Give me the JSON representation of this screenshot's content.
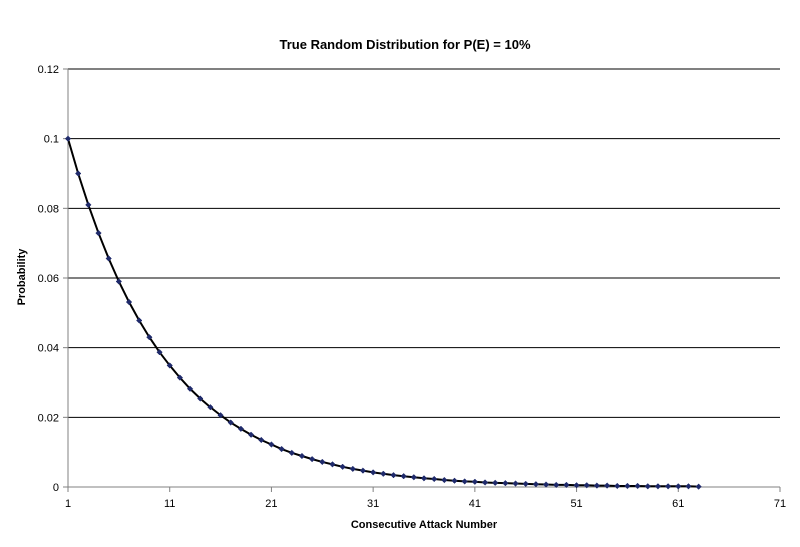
{
  "chart_data": {
    "type": "line",
    "title": "True Random Distribution for P(E) = 10%",
    "xlabel": "Consecutive Attack Number",
    "ylabel": "Probability",
    "xlim": [
      1,
      71
    ],
    "ylim": [
      0,
      0.12
    ],
    "x_ticks": [
      1,
      11,
      21,
      31,
      41,
      51,
      61,
      71
    ],
    "y_ticks": [
      0,
      0.02,
      0.04,
      0.06,
      0.08,
      0.1,
      0.12
    ],
    "x_tick_labels": [
      "1",
      "11",
      "21",
      "31",
      "41",
      "51",
      "61",
      "71"
    ],
    "y_tick_labels": [
      "0",
      "0.02",
      "0.04",
      "0.06",
      "0.08",
      "0.1",
      "0.12"
    ],
    "grid": "horizontal",
    "legend": "none",
    "line_color": "#000000",
    "marker_color": "#1f2a6b",
    "series": [
      {
        "x": [
          1,
          2,
          3,
          4,
          5,
          6,
          7,
          8,
          9,
          10,
          11,
          12,
          13,
          14,
          15,
          16,
          17,
          18,
          19,
          20,
          21,
          22,
          23,
          24,
          25,
          26,
          27,
          28,
          29,
          30,
          31,
          32,
          33,
          34,
          35,
          36,
          37,
          38,
          39,
          40,
          41,
          42,
          43,
          44,
          45,
          46,
          47,
          48,
          49,
          50,
          51,
          52,
          53,
          54,
          55,
          56,
          57,
          58,
          59,
          60,
          61,
          62,
          63
        ],
        "values": [
          0.1,
          0.09,
          0.081,
          0.0729,
          0.0656,
          0.059,
          0.0531,
          0.0478,
          0.043,
          0.0387,
          0.0349,
          0.0314,
          0.0282,
          0.0254,
          0.0229,
          0.0206,
          0.0185,
          0.0167,
          0.015,
          0.0135,
          0.0122,
          0.0109,
          0.0098,
          0.0089,
          0.008,
          0.0072,
          0.0065,
          0.0058,
          0.0052,
          0.0047,
          0.0042,
          0.0038,
          0.0034,
          0.0031,
          0.0028,
          0.0025,
          0.0023,
          0.002,
          0.0018,
          0.0016,
          0.0015,
          0.0013,
          0.0012,
          0.0011,
          0.001,
          0.0009,
          0.0008,
          0.0007,
          0.0006,
          0.0006,
          0.0005,
          0.0005,
          0.0004,
          0.0004,
          0.0003,
          0.0003,
          0.0003,
          0.0002,
          0.0002,
          0.0002,
          0.0002,
          0.0002,
          0.0001
        ]
      }
    ]
  }
}
